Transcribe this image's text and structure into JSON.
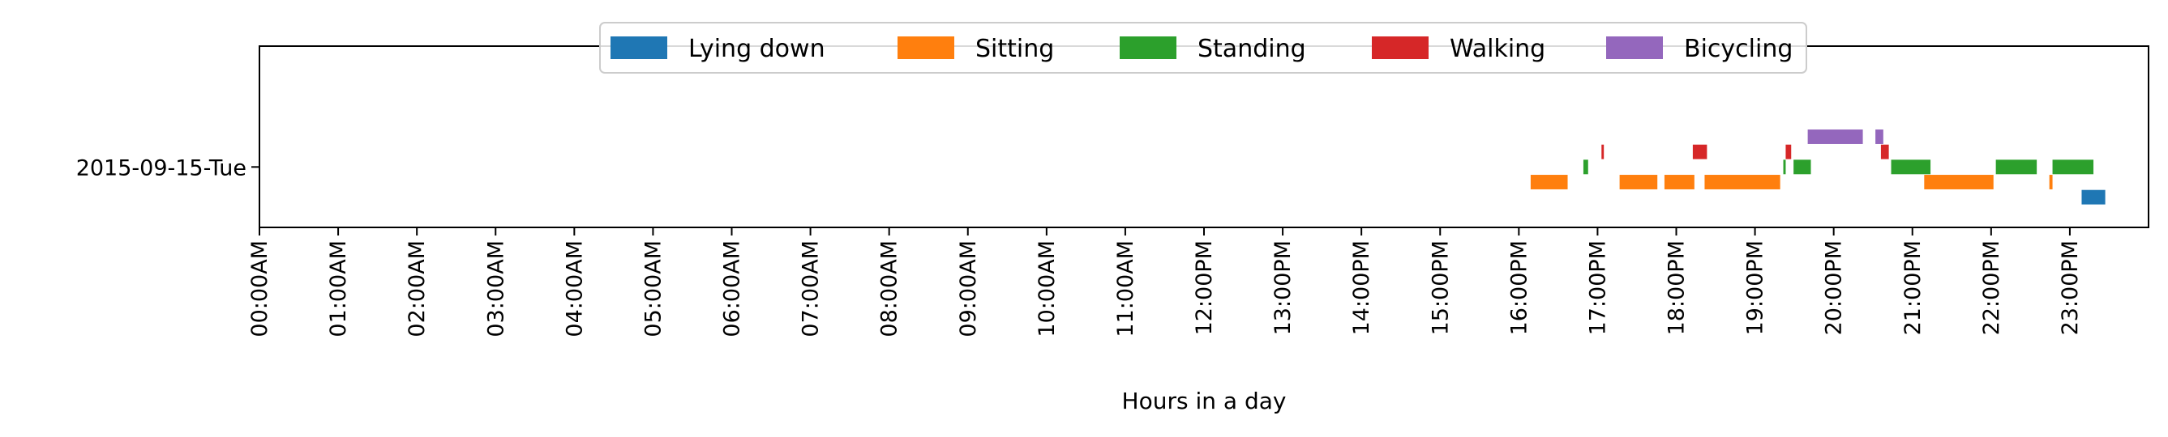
{
  "chart_data": {
    "type": "timeline",
    "xlabel": "Hours in a day",
    "x_ticks": [
      "00:00AM",
      "01:00AM",
      "02:00AM",
      "03:00AM",
      "04:00AM",
      "05:00AM",
      "06:00AM",
      "07:00AM",
      "08:00AM",
      "09:00AM",
      "10:00AM",
      "11:00AM",
      "12:00PM",
      "13:00PM",
      "14:00PM",
      "15:00PM",
      "16:00PM",
      "17:00PM",
      "18:00PM",
      "19:00PM",
      "20:00PM",
      "21:00PM",
      "22:00PM",
      "23:00PM"
    ],
    "xlim": [
      0,
      24
    ],
    "y_categories": [
      "2015-09-15-Tue"
    ],
    "legend": {
      "placement": "upper-center"
    },
    "series": [
      {
        "name": "Lying down",
        "color": "#1f77b4",
        "row_offset": -0.25,
        "intervals": [
          [
            23.15,
            23.45
          ]
        ]
      },
      {
        "name": "Sitting",
        "color": "#ff7f0e",
        "row_offset": -0.125,
        "intervals": [
          [
            16.15,
            16.62
          ],
          [
            17.28,
            17.76
          ],
          [
            17.85,
            18.23
          ],
          [
            18.36,
            19.32
          ],
          [
            21.15,
            22.03
          ],
          [
            22.74,
            22.78
          ]
        ]
      },
      {
        "name": "Standing",
        "color": "#2ca02c",
        "row_offset": 0.0,
        "intervals": [
          [
            16.82,
            16.88
          ],
          [
            19.36,
            19.39
          ],
          [
            19.49,
            19.71
          ],
          [
            20.73,
            21.23
          ],
          [
            22.06,
            22.58
          ],
          [
            22.78,
            23.3
          ]
        ]
      },
      {
        "name": "Walking",
        "color": "#d62728",
        "row_offset": 0.125,
        "intervals": [
          [
            17.05,
            17.08
          ],
          [
            18.21,
            18.39
          ],
          [
            19.39,
            19.46
          ],
          [
            20.6,
            20.7
          ]
        ]
      },
      {
        "name": "Bicycling",
        "color": "#9467bd",
        "row_offset": 0.25,
        "intervals": [
          [
            19.67,
            20.37
          ],
          [
            20.53,
            20.63
          ]
        ]
      }
    ]
  }
}
